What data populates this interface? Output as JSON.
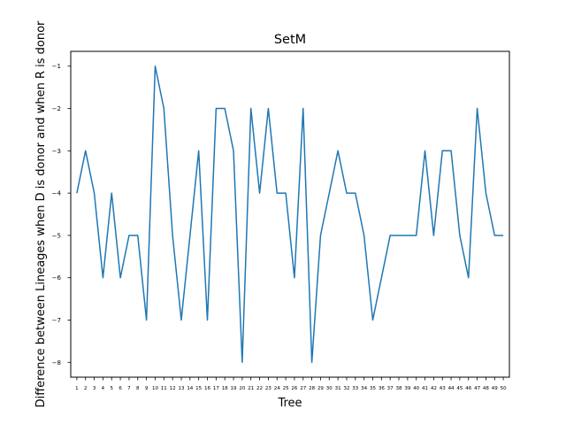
{
  "chart_data": {
    "type": "line",
    "title": "SetM",
    "xlabel": "Tree",
    "ylabel": "Difference between Lineages when D is donor and when R is donor",
    "x": [
      "1",
      "2",
      "3",
      "4",
      "5",
      "6",
      "7",
      "8",
      "9",
      "10",
      "11",
      "12",
      "13",
      "14",
      "15",
      "16",
      "17",
      "18",
      "19",
      "20",
      "21",
      "22",
      "23",
      "24",
      "25",
      "26",
      "27",
      "28",
      "29",
      "30",
      "31",
      "32",
      "33",
      "34",
      "35",
      "36",
      "37",
      "38",
      "39",
      "40",
      "41",
      "42",
      "43",
      "44",
      "45",
      "46",
      "47",
      "48",
      "49",
      "50"
    ],
    "series": [
      {
        "values": [
          -4,
          -3,
          -4,
          -6,
          -4,
          -6,
          -5,
          -5,
          -7,
          -1,
          -2,
          -5,
          -7,
          -5,
          -3,
          -7,
          -2,
          -2,
          -3,
          -8,
          -2,
          -4,
          -2,
          -4,
          -4,
          -6,
          -2,
          -8,
          -5,
          -4,
          -3,
          -4,
          -4,
          -5,
          -7,
          -6,
          -5,
          -5,
          -5,
          -5,
          -3,
          -5,
          -3,
          -3,
          -5,
          -6,
          -2,
          -4,
          -5,
          -5
        ],
        "color": "#1f77b4"
      }
    ],
    "yticks": [
      -1,
      -2,
      -3,
      -4,
      -5,
      -6,
      -7,
      -8
    ],
    "ylim": [
      -8.35,
      -0.65
    ],
    "xlim": [
      0.3,
      50.7
    ],
    "grid": false,
    "legend": "none"
  }
}
